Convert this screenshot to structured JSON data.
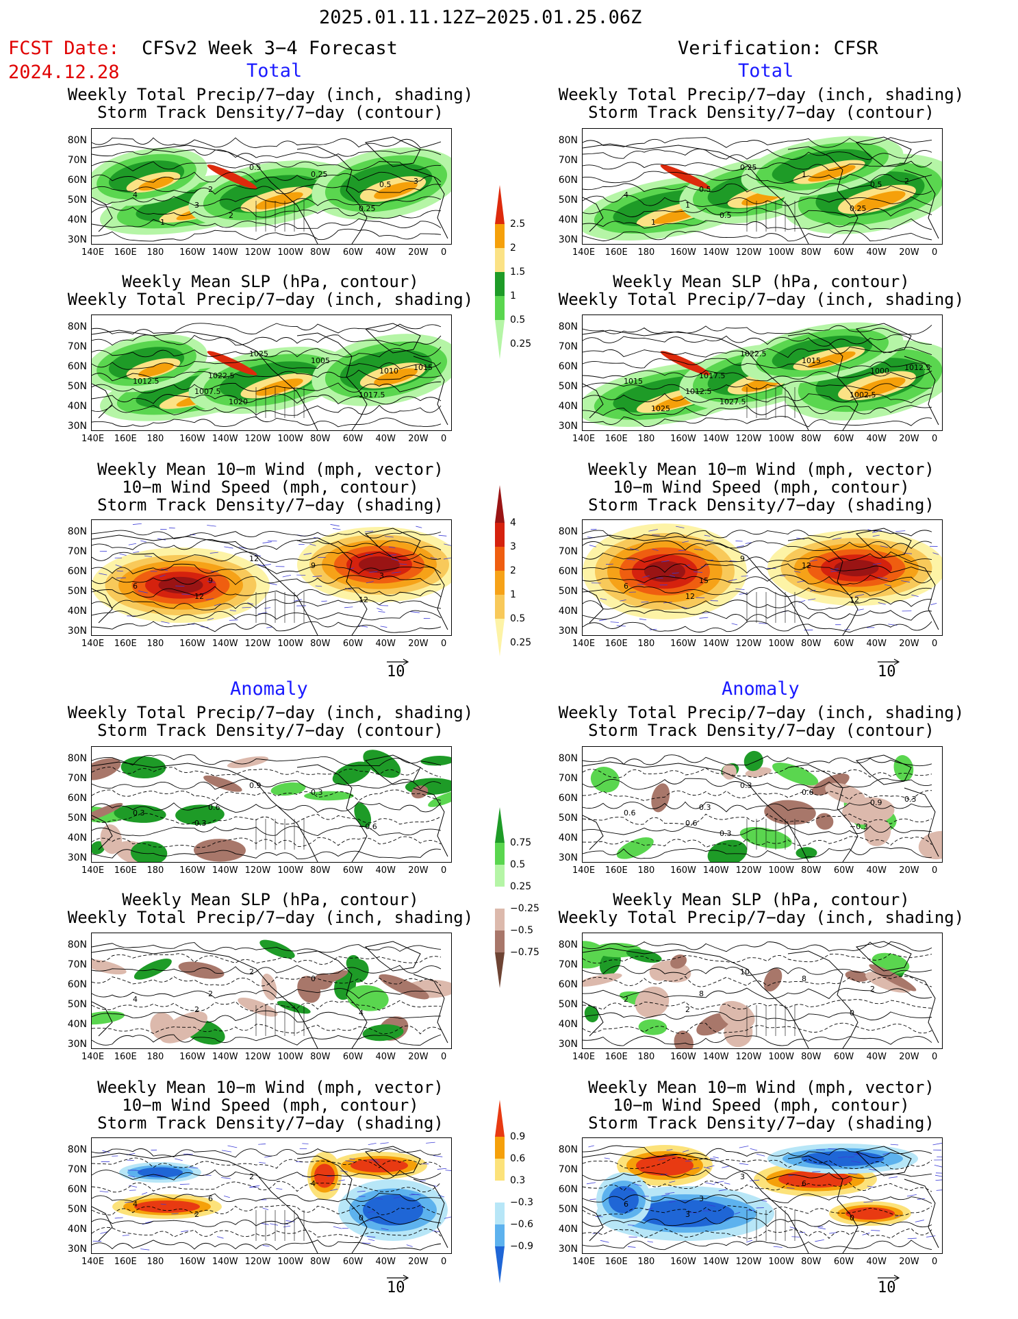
{
  "header": {
    "date_range": "2025.01.11.12Z−2025.01.25.06Z",
    "fcst_label": "FCST Date:",
    "fcst_date": "2024.12.28",
    "left_title": "CFSv2 Week 3−4 Forecast",
    "right_title": "Verification: CFSR"
  },
  "sections": {
    "total": "Total",
    "anomaly": "Anomaly"
  },
  "panel_titles": {
    "precip_storm": [
      "Weekly Total Precip/7−day (inch, shading)",
      "Storm Track Density/7−day (contour)"
    ],
    "slp_precip": [
      "Weekly Mean SLP (hPa, contour)",
      "Weekly Total Precip/7−day (inch, shading)"
    ],
    "wind_storm": [
      "Weekly Mean 10−m Wind (mph, vector)",
      "10−m Wind Speed (mph, contour)",
      "Storm Track Density/7−day (shading)"
    ]
  },
  "axes": {
    "lat_labels": [
      "80N",
      "70N",
      "60N",
      "50N",
      "40N",
      "30N"
    ],
    "lon_labels": [
      "140E",
      "160E",
      "180",
      "160W",
      "140W",
      "120W",
      "100W",
      "80W",
      "60W",
      "40W",
      "20W",
      "0"
    ]
  },
  "vector_ref": "10",
  "colorbars": {
    "precip_total": {
      "labels": [
        "2.5",
        "2",
        "1.5",
        "1",
        "0.5",
        "0.25"
      ],
      "colors": [
        "#dd2a0c",
        "#f5a00a",
        "#fbe285",
        "#1e9b27",
        "#5ad64f",
        "#b5f5a6"
      ]
    },
    "storm_total": {
      "labels": [
        "4",
        "3",
        "2",
        "1",
        "0.5",
        "0.25"
      ],
      "colors": [
        "#9a1414",
        "#d5220e",
        "#ef5e10",
        "#f6a218",
        "#f8c95a",
        "#fdf3a6"
      ]
    },
    "precip_anom": {
      "labels": [
        "0.75",
        "0.5",
        "0.25",
        "−0.25",
        "−0.5",
        "−0.75"
      ],
      "colors": [
        "#1e9b27",
        "#5ad64f",
        "#b5f5a6",
        "#ffffff",
        "#dcb9ac",
        "#a8776a",
        "#6e4434"
      ]
    },
    "storm_anom": {
      "labels": [
        "0.9",
        "0.6",
        "0.3",
        "−0.3",
        "−0.6",
        "−0.9"
      ],
      "colors": [
        "#e83a12",
        "#f5a00a",
        "#fce27a",
        "#ffffff",
        "#b7e6f7",
        "#5db2ee",
        "#1f66d6"
      ]
    }
  },
  "panels": {
    "L1": {
      "labels": [
        "4",
        "3",
        "2",
        "0.5",
        "0.25",
        "0.25",
        "0.5",
        "3",
        "2",
        "1"
      ]
    },
    "R1": {
      "labels": [
        "4",
        "1",
        "0.5",
        "0.25",
        "1",
        "0.25",
        "0.5",
        "2",
        "0.5",
        "1"
      ]
    },
    "L2": {
      "labels": [
        "1012.5",
        "1007.5",
        "1022.5",
        "1025",
        "1005",
        "1017.5",
        "1010",
        "1015",
        "1020"
      ]
    },
    "R2": {
      "labels": [
        "1015",
        "1012.5",
        "1017.5",
        "1022.5",
        "1015",
        "1002.5",
        "1000",
        "1012.5",
        "1027.5",
        "1025"
      ]
    },
    "L3": {
      "labels": [
        "6",
        "12",
        "9",
        "12",
        "9",
        "12",
        "3"
      ]
    },
    "R3": {
      "labels": [
        "6",
        "12",
        "15",
        "9",
        "12",
        "12"
      ]
    },
    "L4": {
      "labels": [
        "0.3",
        "0.3",
        "0.6",
        "0.9",
        "0.3",
        "−0.6"
      ]
    },
    "R4": {
      "labels": [
        "0.6",
        "0.6",
        "0.3",
        "0.3",
        "0.6",
        "−0.3",
        "0.9",
        "0.3",
        "0.3"
      ]
    },
    "L5": {
      "labels": [
        "4",
        "2",
        "2",
        "2",
        "0",
        "4"
      ]
    },
    "R5": {
      "labels": [
        "2",
        "2",
        "8",
        "10",
        "8",
        "0",
        "2"
      ]
    },
    "L6": {
      "labels": [
        "4",
        "2",
        "6",
        "2",
        "4",
        "0"
      ]
    },
    "R6": {
      "labels": [
        "6",
        "3",
        "3",
        "3",
        "6",
        "0"
      ]
    }
  }
}
